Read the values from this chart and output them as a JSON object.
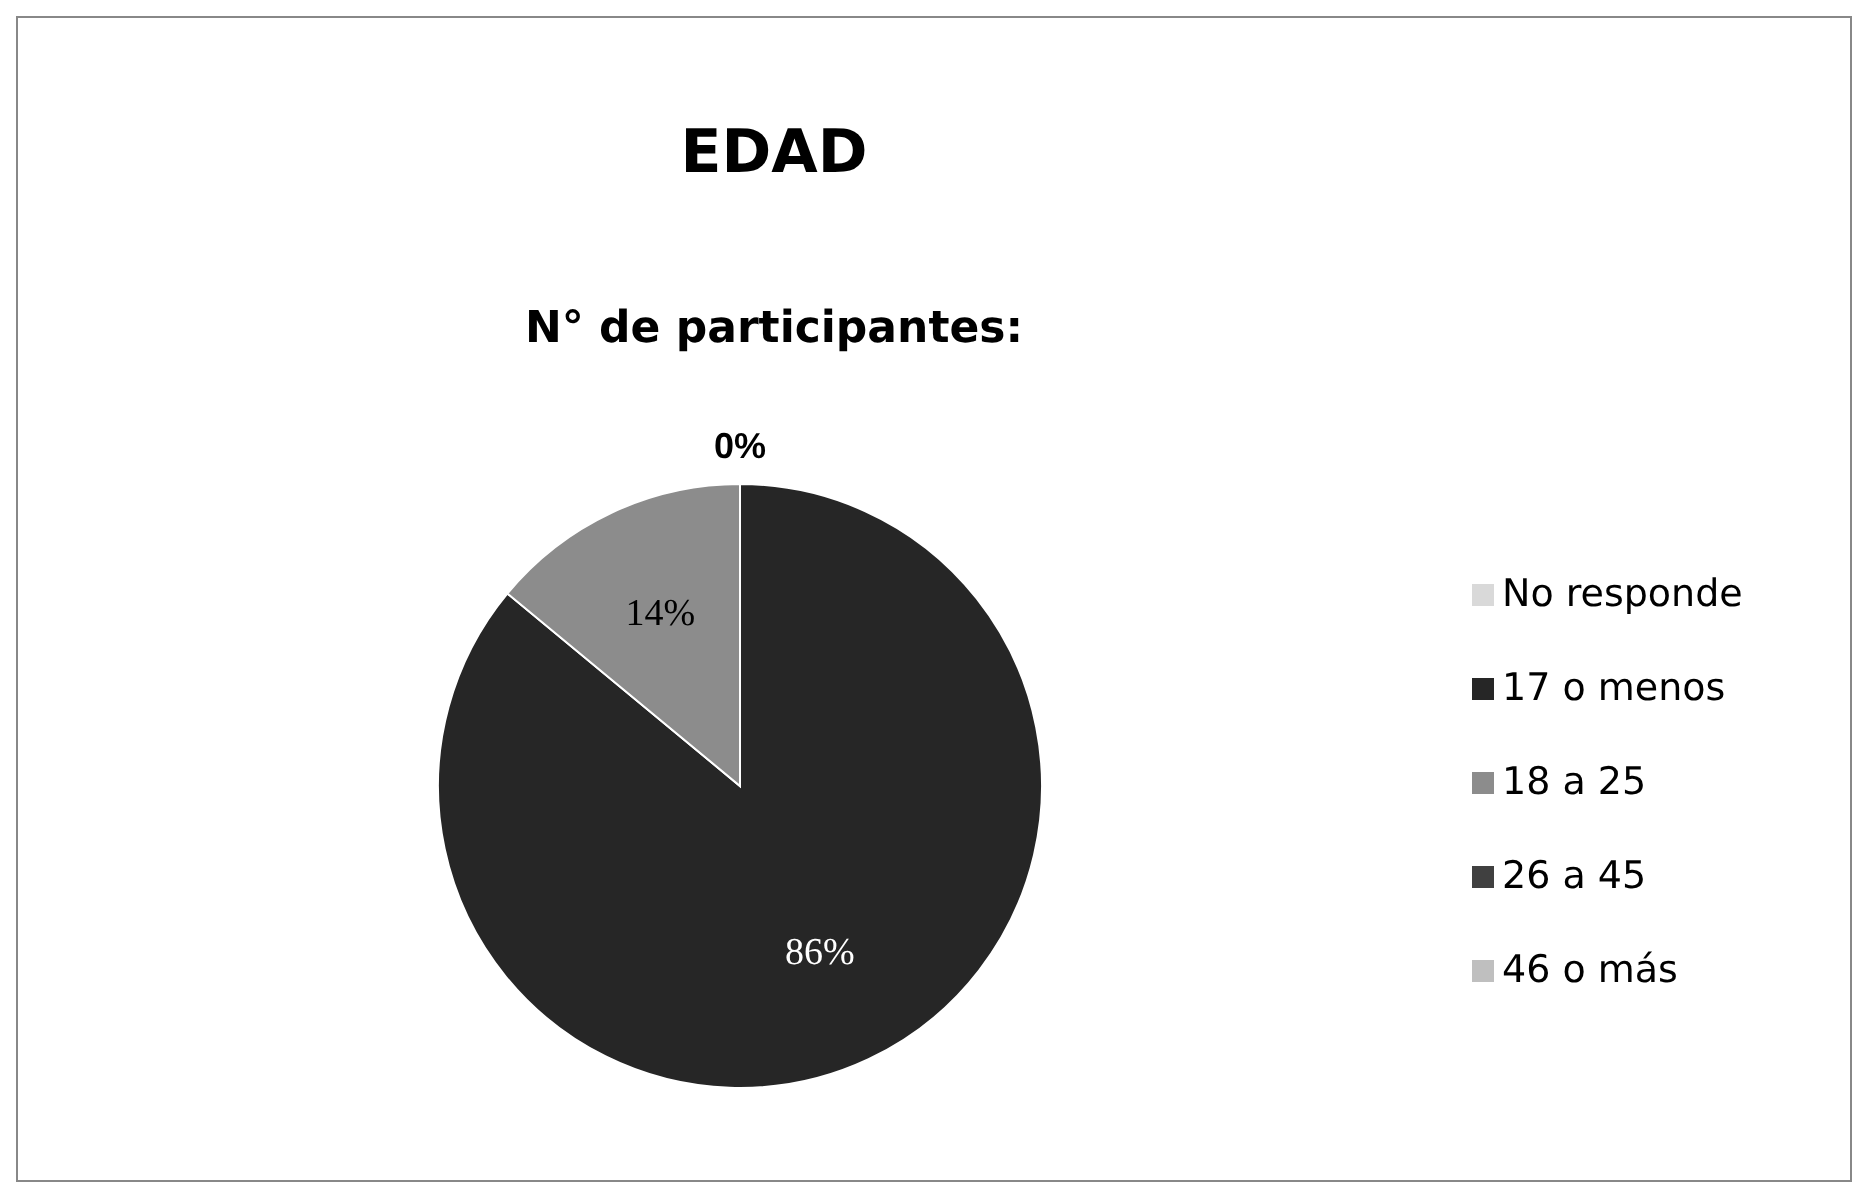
{
  "chart_data": {
    "type": "pie",
    "title": "EDAD",
    "subtitle": "N° de participantes:",
    "categories": [
      "No responde",
      "17 o menos",
      "18 a 25",
      "26 a 45",
      "46 o más"
    ],
    "values": [
      0,
      86,
      14,
      0,
      0
    ],
    "colors": [
      "#d9d9d9",
      "#262626",
      "#8c8c8c",
      "#404040",
      "#bfbfbf"
    ],
    "value_labels": [
      "0%",
      "86%",
      "14%",
      null,
      null
    ],
    "legend": "right"
  }
}
